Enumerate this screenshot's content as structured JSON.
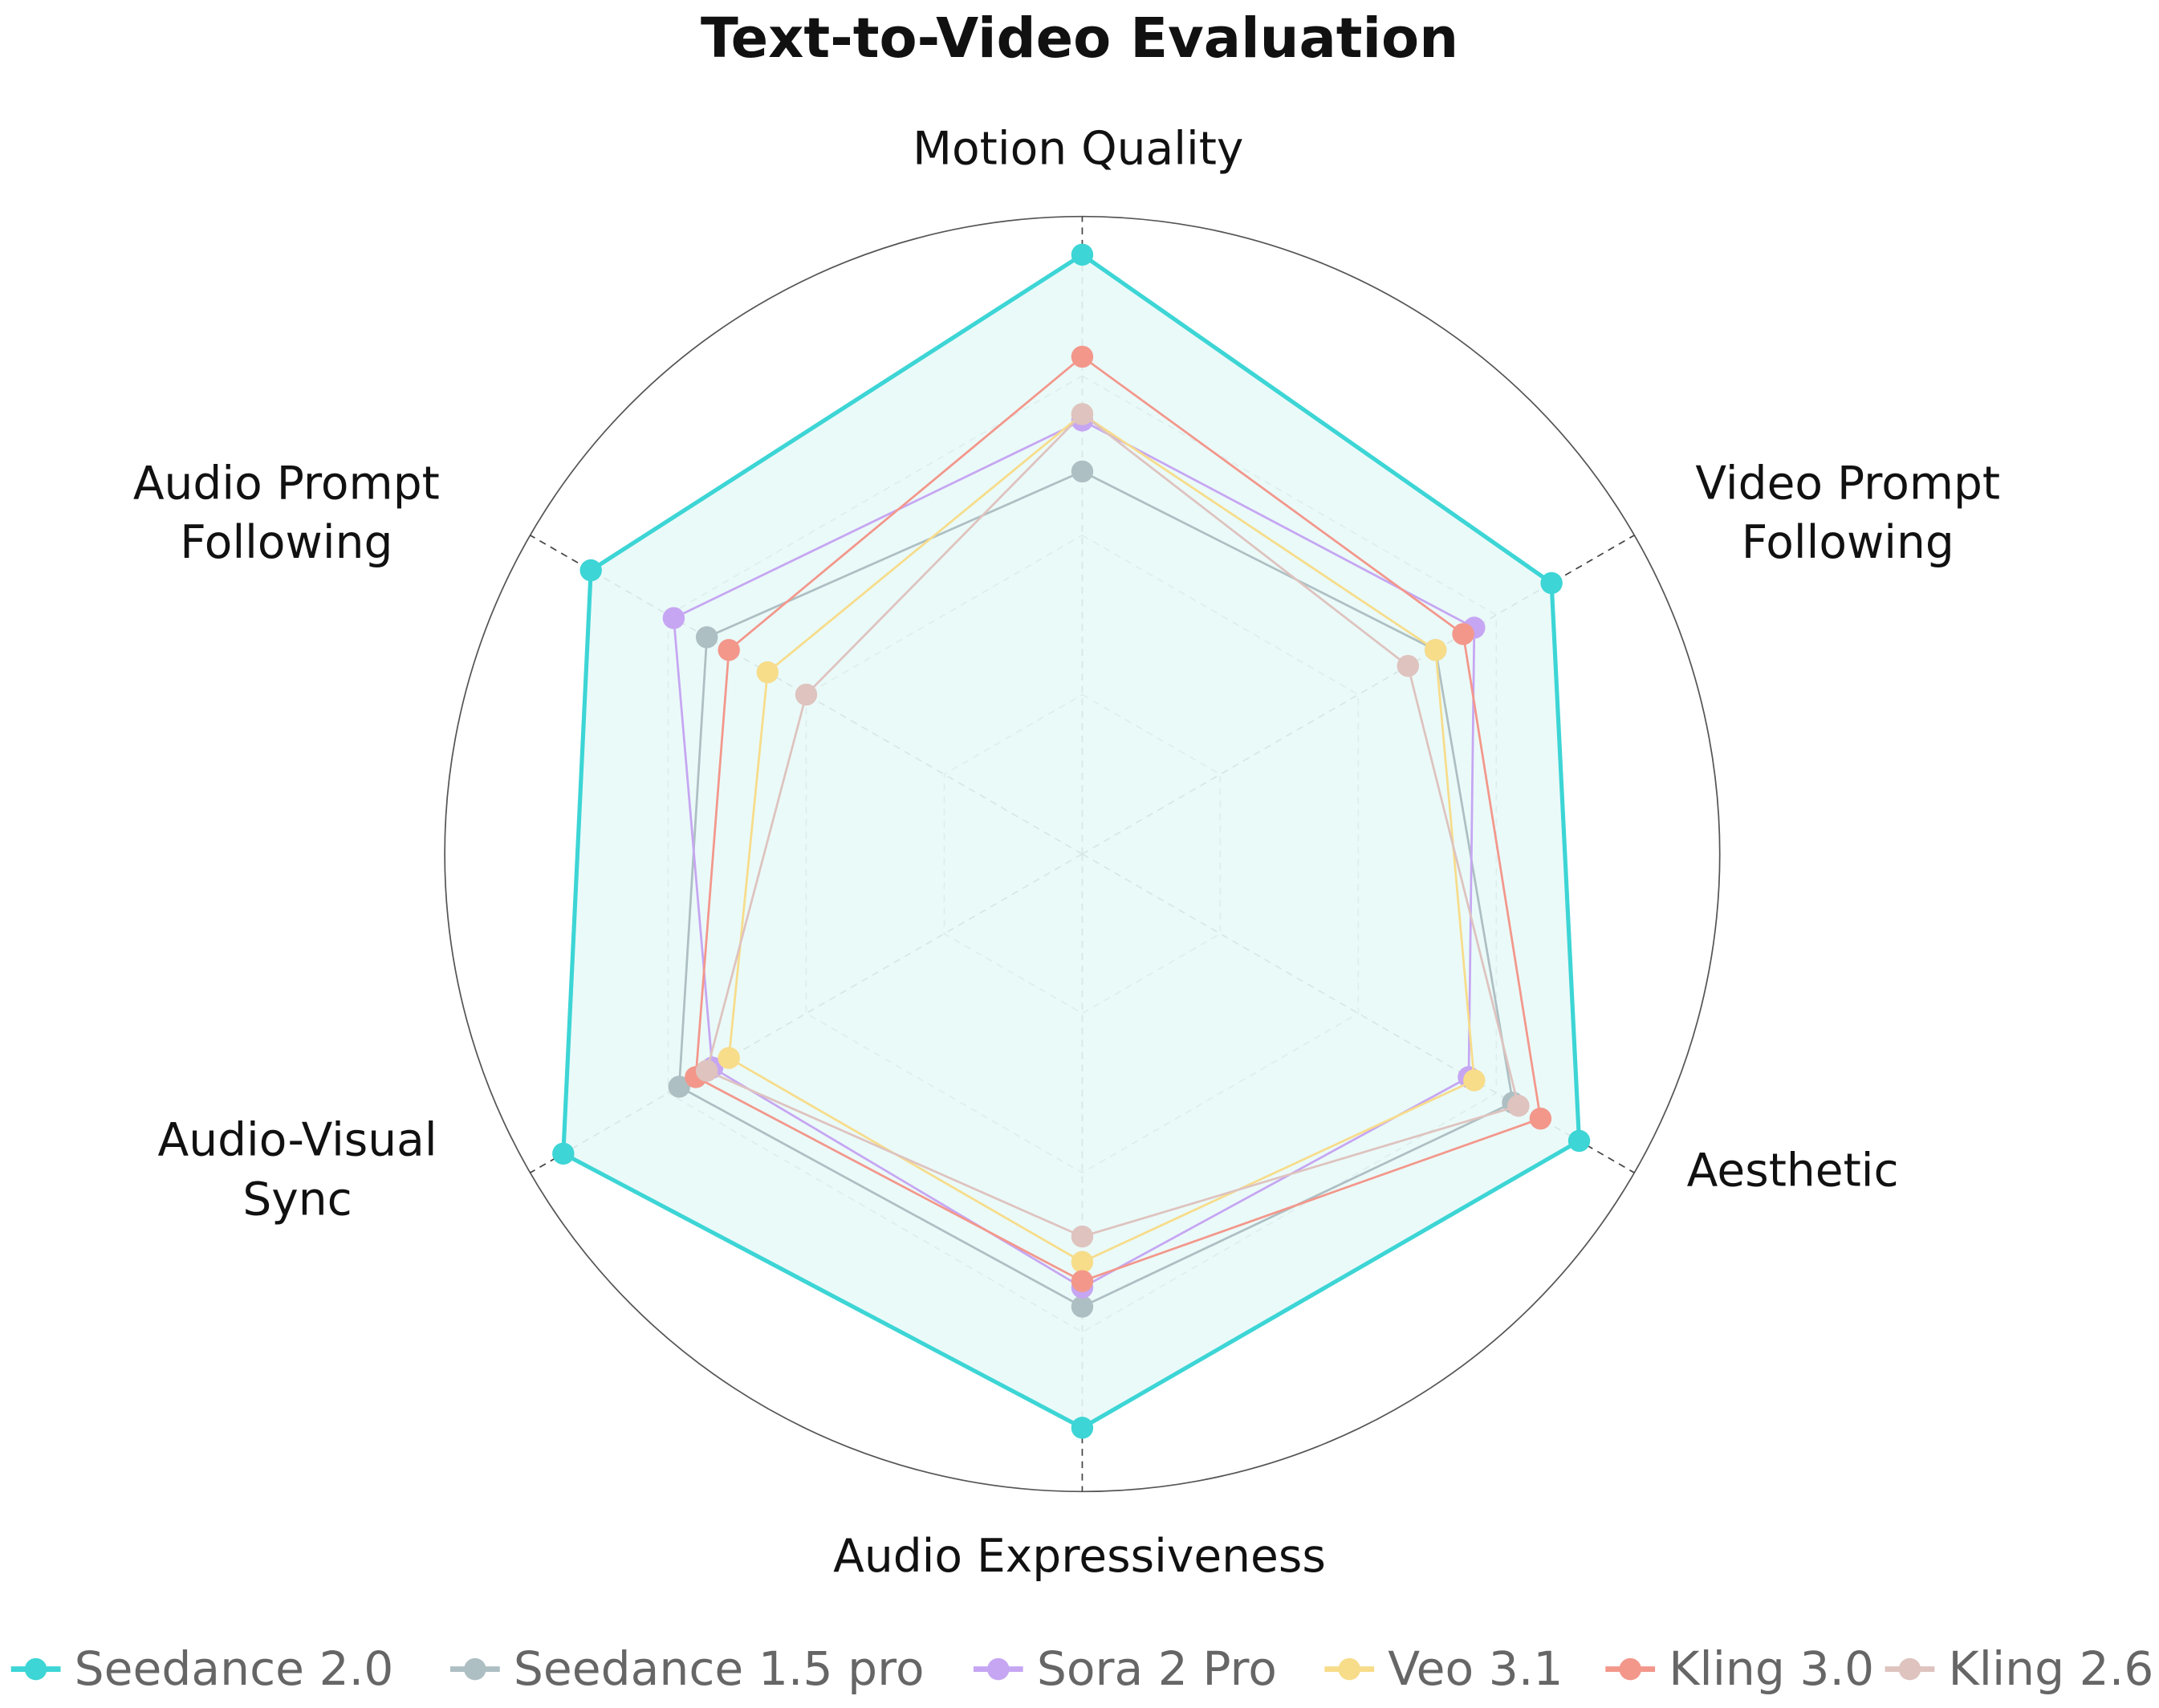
{
  "chart_data": {
    "type": "radar",
    "title": "Text-to-Video Evaluation",
    "categories": [
      "Motion Quality",
      "Video Prompt Following",
      "Aesthetic",
      "Audio Expressiveness",
      "Audio-Visual Sync",
      "Audio Prompt Following"
    ],
    "rlim": [
      0,
      100
    ],
    "rticks": [
      25,
      50,
      75,
      100
    ],
    "grid": true,
    "series": [
      {
        "name": "Seedance 2.0",
        "color": "#3dd5d5",
        "fill": "#e8faf8",
        "values": [
          94,
          85,
          90,
          90,
          94,
          89
        ]
      },
      {
        "name": "Seedance 1.5 pro",
        "color": "#aebfc3",
        "values": [
          60,
          64,
          78,
          71,
          73,
          68
        ]
      },
      {
        "name": "Sora 2 Pro",
        "color": "#c6a6f2",
        "values": [
          68,
          71,
          70,
          68,
          67,
          74
        ]
      },
      {
        "name": "Veo 3.1",
        "color": "#f7dc8a",
        "values": [
          69,
          64,
          71,
          64,
          64,
          57
        ]
      },
      {
        "name": "Kling 3.0",
        "color": "#f3978b",
        "values": [
          78,
          69,
          83,
          67,
          70,
          64
        ]
      },
      {
        "name": "Kling 2.6",
        "color": "#dec3bf",
        "values": [
          69,
          59,
          79,
          60,
          68,
          50
        ]
      }
    ]
  }
}
